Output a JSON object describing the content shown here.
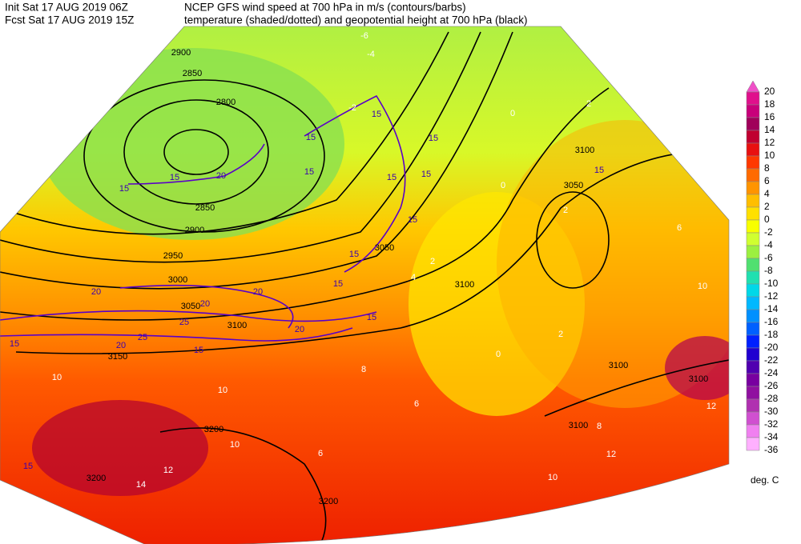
{
  "header": {
    "init": "Init  Sat 17 AUG 2019 06Z",
    "fcst": "Fcst Sat 17 AUG 2019 15Z",
    "title1": "NCEP GFS wind speed at 700 hPa in m/s (contours/barbs)",
    "title2": "temperature (shaded/dotted) and geopotential height at 700 hPa (black)"
  },
  "colorbar": {
    "labels": [
      20,
      18,
      16,
      14,
      12,
      10,
      8,
      6,
      4,
      2,
      0,
      -2,
      -4,
      -6,
      -8,
      -10,
      -12,
      -14,
      -16,
      -18,
      -20,
      -22,
      -24,
      -26,
      -28,
      -30,
      -32,
      -34,
      -36
    ],
    "colors": [
      "#f050c8",
      "#e0108c",
      "#c8007a",
      "#a0005a",
      "#c00030",
      "#e81010",
      "#ff3800",
      "#ff6a00",
      "#ff9400",
      "#ffbe00",
      "#ffe000",
      "#f8ff00",
      "#d0ff30",
      "#9cf040",
      "#50e070",
      "#20e0b0",
      "#00d8e8",
      "#00b8ff",
      "#0090ff",
      "#0060ff",
      "#0020ff",
      "#2000d0",
      "#5000b0",
      "#7800a0",
      "#9010a0",
      "#b030b0",
      "#d050d0",
      "#f080f0",
      "#ffb0ff"
    ],
    "unit": "deg. C"
  },
  "map": {
    "height_labels": [
      "2800",
      "2850",
      "2900",
      "2850",
      "2900",
      "2950",
      "3000",
      "3050",
      "3100",
      "3150",
      "3100",
      "3050",
      "3100",
      "3050",
      "3100",
      "3100",
      "3100",
      "3200",
      "3200",
      "3200"
    ],
    "wind_labels": [
      "15",
      "20",
      "15",
      "15",
      "15",
      "15",
      "15",
      "15",
      "15",
      "15",
      "15",
      "20",
      "20",
      "20",
      "20",
      "25",
      "25",
      "20",
      "15",
      "15",
      "15",
      "15",
      "15",
      "15"
    ],
    "temperature_labels": [
      "-6",
      "-4",
      "-2",
      "0",
      "2",
      "2",
      "0",
      "4",
      "2",
      "6",
      "10",
      "2",
      "0",
      "8",
      "10",
      "10",
      "10",
      "12",
      "14",
      "12",
      "10",
      "12",
      "8",
      "6",
      "6"
    ]
  }
}
